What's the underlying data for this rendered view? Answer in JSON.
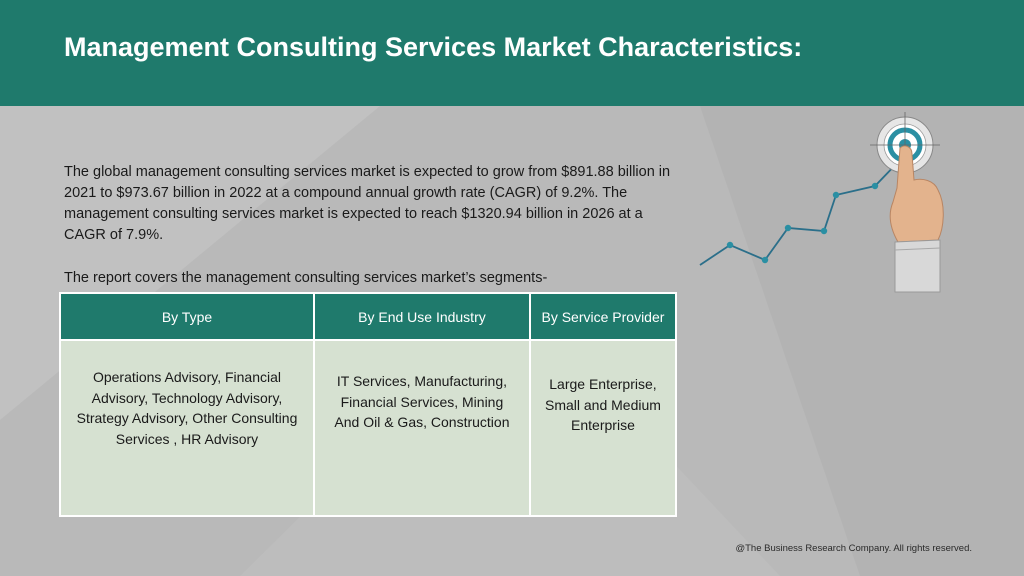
{
  "header": {
    "title": "Management Consulting Services Market Characteristics:",
    "color": "#1f7a6c"
  },
  "intro": {
    "text": "The global management consulting services market is expected to grow from $891.88 billion in 2021 to $973.67 billion in 2022 at a compound annual growth rate (CAGR) of 9.2%. The management consulting services market is expected to reach $1320.94 billion in 2026 at a CAGR of 7.9%."
  },
  "segments": {
    "lead": "The report covers the management consulting services market’s segments-",
    "columns": [
      {
        "header": "By Type",
        "body": "Operations Advisory, Financial Advisory, Technology Advisory, Strategy Advisory, Other Consulting Services , HR Advisory"
      },
      {
        "header": "By End Use Industry",
        "body": "IT Services, Manufacturing, Financial Services, Mining And Oil & Gas, Construction"
      },
      {
        "header": "By Service Provider",
        "body": "Large Enterprise, Small and Medium Enterprise"
      }
    ],
    "header_color": "#1f7a6c",
    "body_color": "#d6e1d1"
  },
  "graphic": {
    "icon": "target-growth-hand-icon",
    "accent": "#2a8fa3"
  },
  "footer": {
    "copyright": "@The Business Research Company. All rights reserved."
  }
}
